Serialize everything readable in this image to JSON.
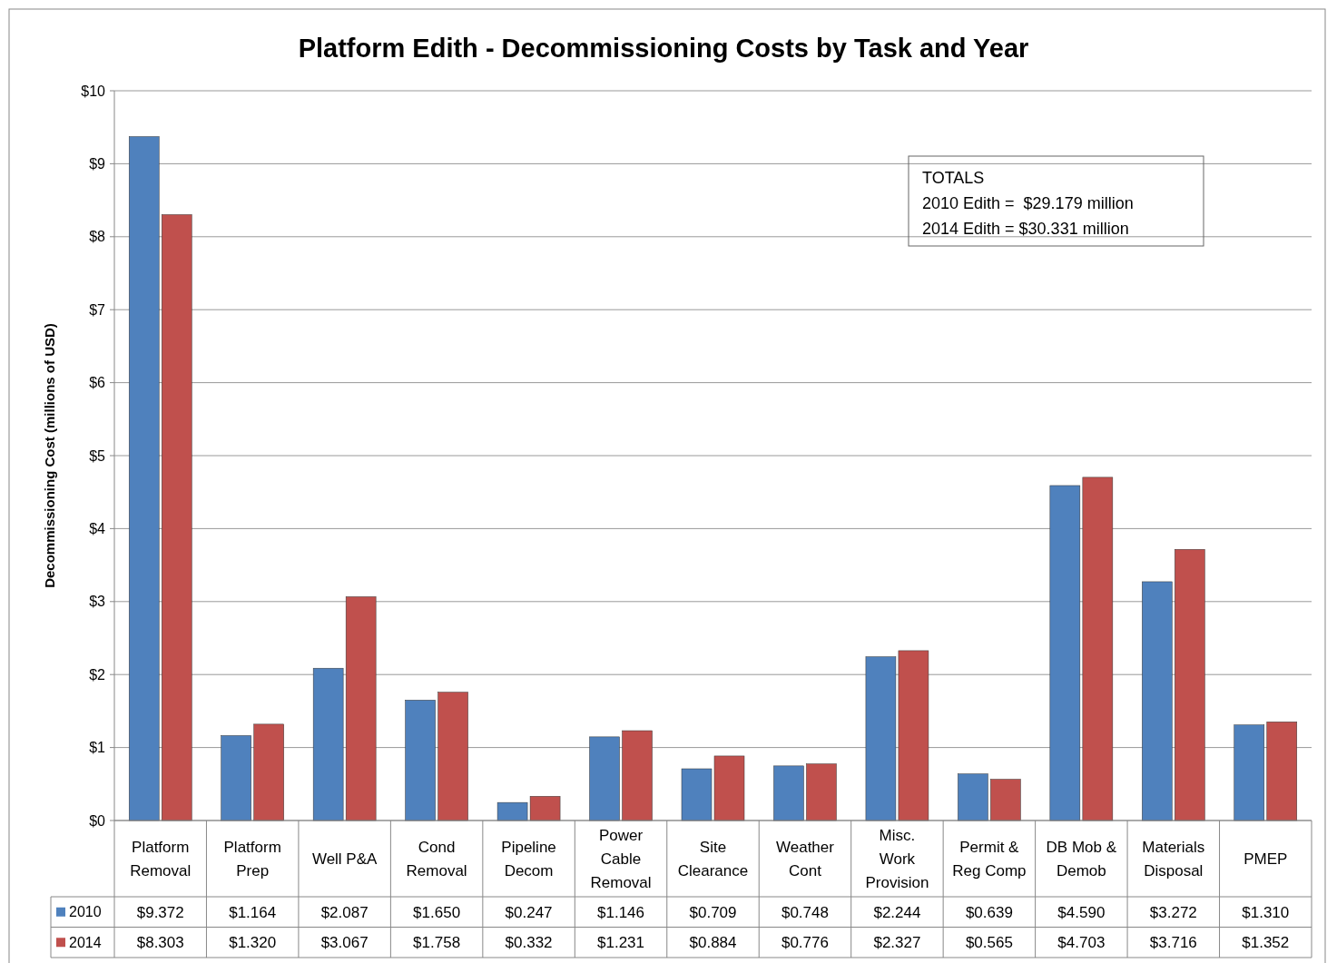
{
  "chart_data": {
    "type": "bar",
    "title": "Platform Edith - Decommissioning Costs by Task and Year",
    "ylabel": "Decommissioning Cost (millions of USD)",
    "categories": [
      "Platform Removal",
      "Platform Prep",
      "Well P&A",
      "Cond Removal",
      "Pipeline Decom",
      "Power Cable Removal",
      "Site Clearance",
      "Weather Cont",
      "Misc. Work Provision",
      "Permit & Reg Comp",
      "DB Mob & Demob",
      "Materials Disposal",
      "PMEP"
    ],
    "series": [
      {
        "name": "2010",
        "color": "#4f81bd",
        "values": [
          9.372,
          1.164,
          2.087,
          1.65,
          0.247,
          1.146,
          0.709,
          0.748,
          2.244,
          0.639,
          4.59,
          3.272,
          1.31
        ],
        "value_labels": [
          "$9.372",
          "$1.164",
          "$2.087",
          "$1.650",
          "$0.247",
          "$1.146",
          "$0.709",
          "$0.748",
          "$2.244",
          "$0.639",
          "$4.590",
          "$3.272",
          "$1.310"
        ]
      },
      {
        "name": "2014",
        "color": "#c0504d",
        "values": [
          8.303,
          1.32,
          3.067,
          1.758,
          0.332,
          1.231,
          0.884,
          0.776,
          2.327,
          0.565,
          4.703,
          3.716,
          1.352
        ],
        "value_labels": [
          "$8.303",
          "$1.320",
          "$3.067",
          "$1.758",
          "$0.332",
          "$1.231",
          "$0.884",
          "$0.776",
          "$2.327",
          "$0.565",
          "$4.703",
          "$3.716",
          "$1.352"
        ]
      }
    ],
    "ylim": [
      0,
      10
    ],
    "yticks": [
      {
        "value": 0,
        "label": "$0"
      },
      {
        "value": 1,
        "label": "$1"
      },
      {
        "value": 2,
        "label": "$2"
      },
      {
        "value": 3,
        "label": "$3"
      },
      {
        "value": 4,
        "label": "$4"
      },
      {
        "value": 5,
        "label": "$5"
      },
      {
        "value": 6,
        "label": "$6"
      },
      {
        "value": 7,
        "label": "$7"
      },
      {
        "value": 8,
        "label": "$8"
      },
      {
        "value": 9,
        "label": "$9"
      },
      {
        "value": 10,
        "label": "$10"
      }
    ],
    "grid": "y",
    "legend": "bottom",
    "annotations": [
      "TOTALS",
      "2010 Edith =  $29.179 million",
      "2014 Edith = $30.331 million"
    ]
  }
}
